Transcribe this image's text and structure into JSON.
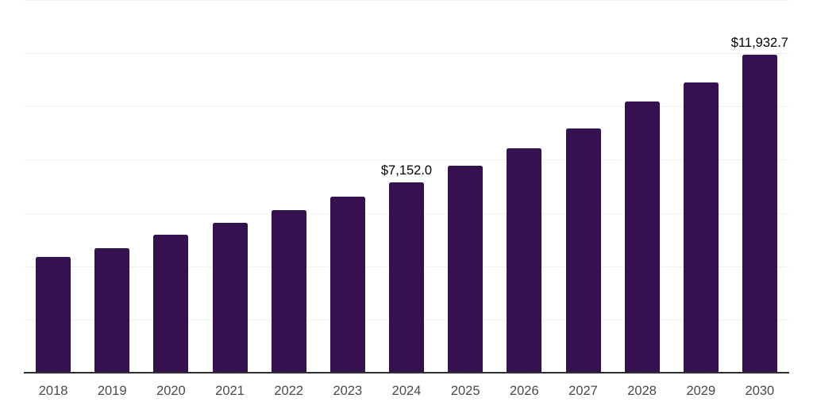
{
  "chart": {
    "background_color": "#ffffff",
    "bar_color": "#361150",
    "axis_color": "#2e2e2e",
    "gridline_color": "#f1f1f1",
    "tick_label_color": "#4a4a4a",
    "value_label_color": "#000000"
  },
  "chart_data": {
    "type": "bar",
    "title": "",
    "xlabel": "",
    "ylabel": "",
    "categories": [
      "2018",
      "2019",
      "2020",
      "2021",
      "2022",
      "2023",
      "2024",
      "2025",
      "2026",
      "2027",
      "2028",
      "2029",
      "2030"
    ],
    "values": [
      4340,
      4685,
      5185,
      5630,
      6100,
      6610,
      7152.0,
      7775,
      8430,
      9165,
      10190,
      10910,
      11932.7
    ],
    "value_labels": [
      {
        "category": "2024",
        "text": "$7,152.0"
      },
      {
        "category": "2030",
        "text": "$11,932.7"
      }
    ],
    "ylim": [
      0,
      14000
    ],
    "gridline_interval": 2000,
    "grid": true,
    "y_axis_tick_labels_visible": false,
    "legend": false
  }
}
